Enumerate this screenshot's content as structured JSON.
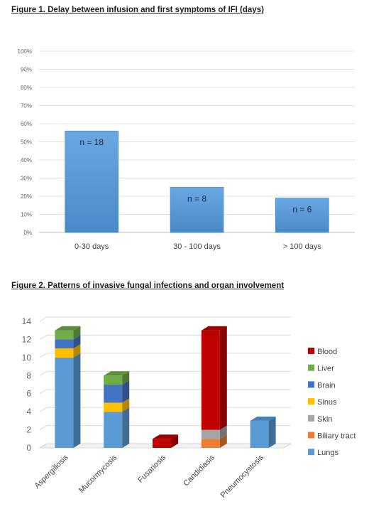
{
  "figure1": {
    "title": "Figure 1. Delay between infusion and first symptoms of IFI (days)",
    "chart_data": {
      "type": "bar",
      "categories": [
        "0-30 days",
        "30 - 100 days",
        "> 100 days"
      ],
      "values": [
        56,
        25,
        19
      ],
      "data_labels": [
        "n = 18",
        "n = 8",
        "n = 6"
      ],
      "ylim": [
        0,
        100
      ],
      "yticks": [
        "0%",
        "10%",
        "20%",
        "30%",
        "40%",
        "50%",
        "60%",
        "70%",
        "80%",
        "90%",
        "100%"
      ],
      "grid": true,
      "bar_color": "#5b9bd5"
    }
  },
  "figure2": {
    "title": "Figure 2.  Patterns of invasive fungal infections and organ involvement",
    "chart_data": {
      "type": "bar",
      "stacked": true,
      "style": "3d",
      "categories": [
        "Aspergillosis",
        "Mucormycosis",
        "Fusariosis",
        "Candidiasis",
        "Pneumocystosis"
      ],
      "series": [
        {
          "name": "Lungs",
          "color": "#5b9bd5",
          "values": [
            10,
            4,
            0,
            0,
            3
          ]
        },
        {
          "name": "Biliary tract",
          "color": "#ed7d31",
          "values": [
            0,
            0,
            0,
            1,
            0
          ]
        },
        {
          "name": "Skin",
          "color": "#a5a5a5",
          "values": [
            0,
            0,
            0,
            1,
            0
          ]
        },
        {
          "name": "Sinus",
          "color": "#ffc000",
          "values": [
            1,
            1,
            0,
            0,
            0
          ]
        },
        {
          "name": "Brain",
          "color": "#4472c4",
          "values": [
            1,
            2,
            0,
            0,
            0
          ]
        },
        {
          "name": "Liver",
          "color": "#70ad47",
          "values": [
            1,
            1,
            0,
            0,
            0
          ]
        },
        {
          "name": "Blood",
          "color": "#c00000",
          "values": [
            0,
            0,
            1,
            11,
            0
          ]
        }
      ],
      "ylim": [
        0,
        14
      ],
      "yticks": [
        "0",
        "2",
        "4",
        "6",
        "8",
        "10",
        "12",
        "14"
      ],
      "grid": true,
      "legend_position": "right"
    }
  }
}
